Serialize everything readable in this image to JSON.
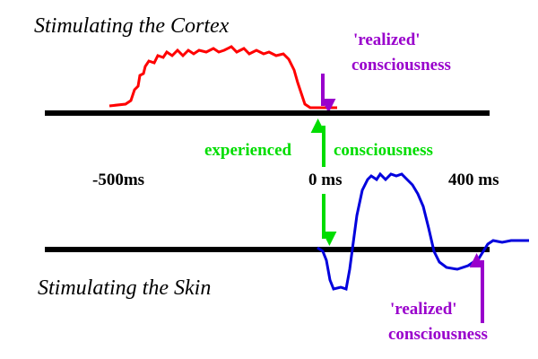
{
  "cortex": {
    "title": "Stimulating the Cortex",
    "realized": [
      "'realized'",
      "consciousness"
    ]
  },
  "experienced": [
    "experienced",
    "consciousness"
  ],
  "time_labels": [
    "-500ms",
    "0 ms",
    "400 ms"
  ],
  "skin": {
    "title": "Stimulating the Skin",
    "realized": [
      "'realized'",
      "consciousness"
    ]
  }
}
